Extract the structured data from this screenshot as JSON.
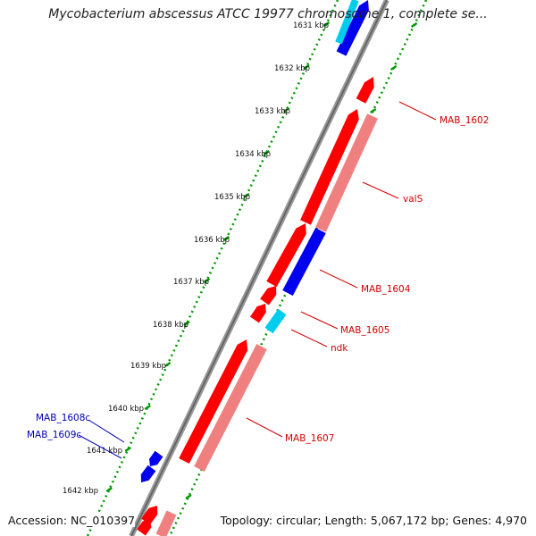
{
  "title": "Mycobacterium abscessus ATCC 19977 chromosome 1, complete se...",
  "footer": {
    "accession": "Accession: NC_010397",
    "info": "Topology: circular; Length: 5,067,172 bp; Genes: 4,970"
  },
  "colors": {
    "backbone": "#888888",
    "gene_red": "#ff0000",
    "gene_pink": "#f08080",
    "gene_blue": "#0000ee",
    "gene_cyan": "#00ccee",
    "tick_green": "#009900",
    "label_red": "#d40000",
    "label_blue": "#0000b0"
  },
  "ticks": [
    {
      "label": "1631 kbp"
    },
    {
      "label": "1632 kbp"
    },
    {
      "label": "1633 kbp"
    },
    {
      "label": "1634 kbp"
    },
    {
      "label": "1635 kbp"
    },
    {
      "label": "1636 kbp"
    },
    {
      "label": "1637 kbp"
    },
    {
      "label": "1638 kbp"
    },
    {
      "label": "1639 kbp"
    },
    {
      "label": "1640 kbp"
    },
    {
      "label": "1641 kbp"
    },
    {
      "label": "1642 kbp"
    }
  ],
  "gene_labels": [
    {
      "text": "MAB_1602",
      "side": "right"
    },
    {
      "text": "valS",
      "side": "right"
    },
    {
      "text": "MAB_1604",
      "side": "right"
    },
    {
      "text": "MAB_1605",
      "side": "right"
    },
    {
      "text": "ndk",
      "side": "right"
    },
    {
      "text": "MAB_1607",
      "side": "right"
    },
    {
      "text": "MAB_1608c",
      "side": "left"
    },
    {
      "text": "MAB_1609c",
      "side": "left"
    }
  ]
}
